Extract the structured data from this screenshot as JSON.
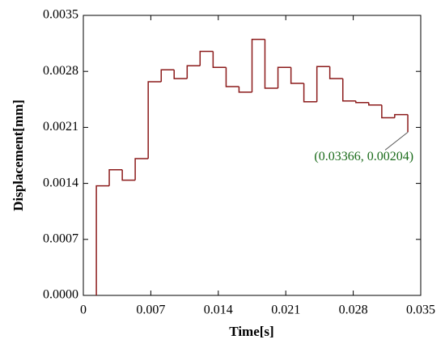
{
  "chart_data": {
    "type": "step",
    "xlabel": "Time[s]",
    "ylabel": "Displacement[mm]",
    "xlim": [
      0,
      0.035
    ],
    "xticks": [
      0,
      0.007,
      0.014,
      0.021,
      0.028,
      0.035
    ],
    "ylim": [
      0,
      0.0035
    ],
    "yticks": [
      {
        "value": 0,
        "label": "0.0000"
      },
      {
        "value": 0.0007,
        "label": "0.0007"
      },
      {
        "value": 0.0014,
        "label": "0.0014"
      },
      {
        "value": 0.0021,
        "label": "0.0021"
      },
      {
        "value": 0.0028,
        "label": "0.0028"
      },
      {
        "value": 0.0035,
        "label": "0.0035"
      }
    ],
    "series": [
      {
        "color": "#8b1a1a",
        "x": [
          0.00135,
          0.00269,
          0.00404,
          0.00538,
          0.00673,
          0.00808,
          0.00942,
          0.01077,
          0.01211,
          0.01346,
          0.01481,
          0.01615,
          0.0175,
          0.01884,
          0.02019,
          0.02154,
          0.02288,
          0.02423,
          0.02557,
          0.02692,
          0.02827,
          0.02961,
          0.03096,
          0.0323,
          0.03366,
          0.03366
        ],
        "values": [
          0,
          0.00137,
          0.00157,
          0.00144,
          0.00171,
          0.00267,
          0.00282,
          0.00271,
          0.00287,
          0.00305,
          0.00285,
          0.00261,
          0.00254,
          0.0032,
          0.00259,
          0.00285,
          0.00265,
          0.00242,
          0.00286,
          0.00271,
          0.00243,
          0.00241,
          0.00238,
          0.00222,
          0.00226,
          0.00204
        ]
      }
    ],
    "annotation": {
      "text": "(0.03366, 0.00204)",
      "color": "#1a6b1a"
    }
  }
}
